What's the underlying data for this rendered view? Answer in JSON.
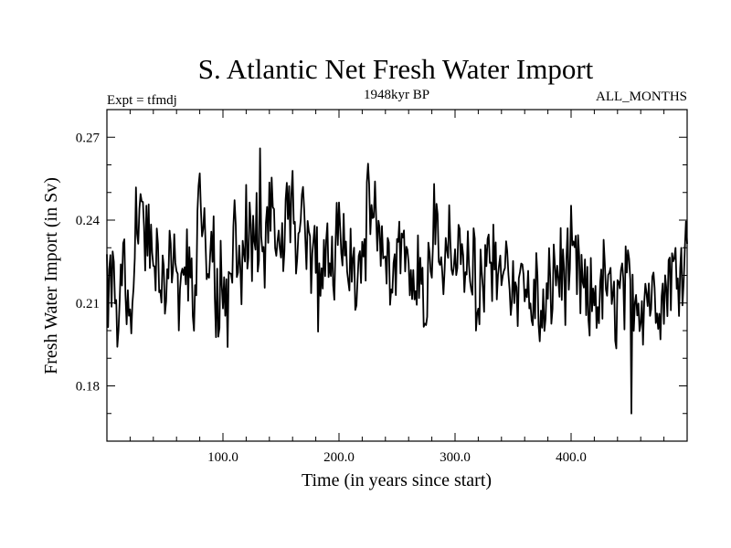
{
  "chart_data": {
    "type": "line",
    "title": "S. Atlantic Net Fresh Water Import",
    "subtitle": "1948kyr BP",
    "expt_label": "Expt = tfmdj",
    "months_label": "ALL_MONTHS",
    "xlabel": "Time (in years since start)",
    "ylabel": "Fresh Water Import (in Sv)",
    "xlim": [
      0,
      500
    ],
    "ylim": [
      0.16,
      0.28
    ],
    "x_ticks": [
      100,
      200,
      300,
      400
    ],
    "x_tick_labels": [
      "100.0",
      "200.0",
      "300.0",
      "400.0"
    ],
    "y_ticks": [
      0.18,
      0.21,
      0.24,
      0.27
    ],
    "y_tick_labels": [
      "0.18",
      "0.21",
      "0.24",
      "0.27"
    ],
    "series": [
      {
        "name": "net fresh water import",
        "x_start": 0,
        "x_step": 5,
        "values": [
          0.212,
          0.222,
          0.205,
          0.23,
          0.2,
          0.235,
          0.244,
          0.23,
          0.222,
          0.228,
          0.215,
          0.232,
          0.223,
          0.208,
          0.222,
          0.213,
          0.246,
          0.228,
          0.232,
          0.212,
          0.216,
          0.21,
          0.235,
          0.21,
          0.24,
          0.228,
          0.233,
          0.226,
          0.245,
          0.235,
          0.231,
          0.242,
          0.248,
          0.226,
          0.238,
          0.228,
          0.218,
          0.216,
          0.232,
          0.225,
          0.24,
          0.23,
          0.232,
          0.219,
          0.226,
          0.241,
          0.238,
          0.235,
          0.22,
          0.228,
          0.229,
          0.23,
          0.226,
          0.222,
          0.221,
          0.215,
          0.232,
          0.236,
          0.225,
          0.231,
          0.218,
          0.232,
          0.22,
          0.224,
          0.205,
          0.218,
          0.228,
          0.22,
          0.23,
          0.22,
          0.212,
          0.212,
          0.22,
          0.206,
          0.215,
          0.2,
          0.21,
          0.221,
          0.222,
          0.219,
          0.225,
          0.22,
          0.215,
          0.205,
          0.215,
          0.21,
          0.221,
          0.205,
          0.212,
          0.215,
          0.212,
          0.216,
          0.21,
          0.216,
          0.212,
          0.216,
          0.21,
          0.224,
          0.218,
          0.229
        ]
      }
    ],
    "extremes": {
      "max": {
        "x": 132,
        "y": 0.266
      },
      "min": {
        "x": 452,
        "y": 0.17
      }
    }
  }
}
